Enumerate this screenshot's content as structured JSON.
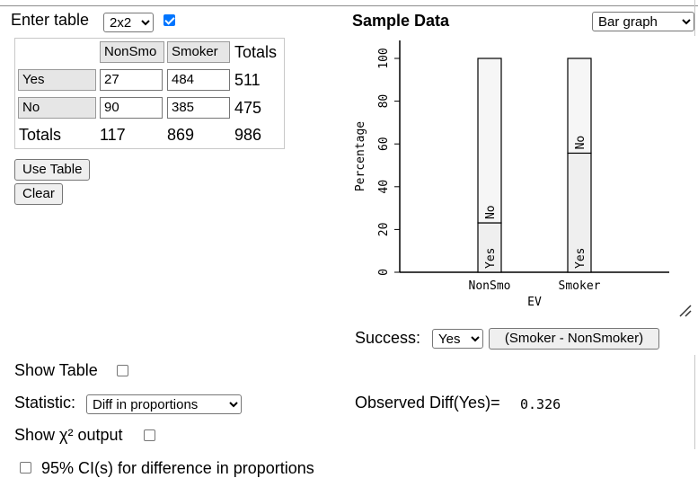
{
  "table_entry": {
    "label": "Enter table",
    "size_select": "2x2",
    "checkbox_checked": true,
    "col_headers": [
      "NonSmo",
      "Smoker"
    ],
    "totals_label": "Totals",
    "rows": [
      {
        "label": "Yes",
        "values": [
          "27",
          "484"
        ],
        "total": "511"
      },
      {
        "label": "No",
        "values": [
          "90",
          "385"
        ],
        "total": "475"
      }
    ],
    "col_totals": [
      "117",
      "869"
    ],
    "grand_total": "986",
    "use_table_button": "Use Table",
    "clear_button": "Clear"
  },
  "sample_data": {
    "title": "Sample Data",
    "graph_select": "Bar graph"
  },
  "chart_data": {
    "type": "bar",
    "stacked": true,
    "categories": [
      "NonSmo",
      "Smoker"
    ],
    "series": [
      {
        "name": "Yes",
        "values": [
          23.1,
          55.7
        ]
      },
      {
        "name": "No",
        "values": [
          76.9,
          44.3
        ]
      }
    ],
    "xlabel": "EV",
    "ylabel": "Percentage",
    "ylim": [
      0,
      100
    ],
    "yticks": [
      "0",
      "20",
      "40",
      "60",
      "80",
      "100"
    ]
  },
  "controls": {
    "success_label": "Success:",
    "success_select": "Yes",
    "diff_button": "(Smoker - NonSmoker)",
    "show_table_label": "Show Table",
    "statistic_label": "Statistic:",
    "statistic_select": "Diff in proportions",
    "observed_label": "Observed Diff(Yes)=",
    "observed_value": "0.326",
    "chi_label": "Show χ² output",
    "ci_label": "95% CI(s) for difference in proportions"
  }
}
